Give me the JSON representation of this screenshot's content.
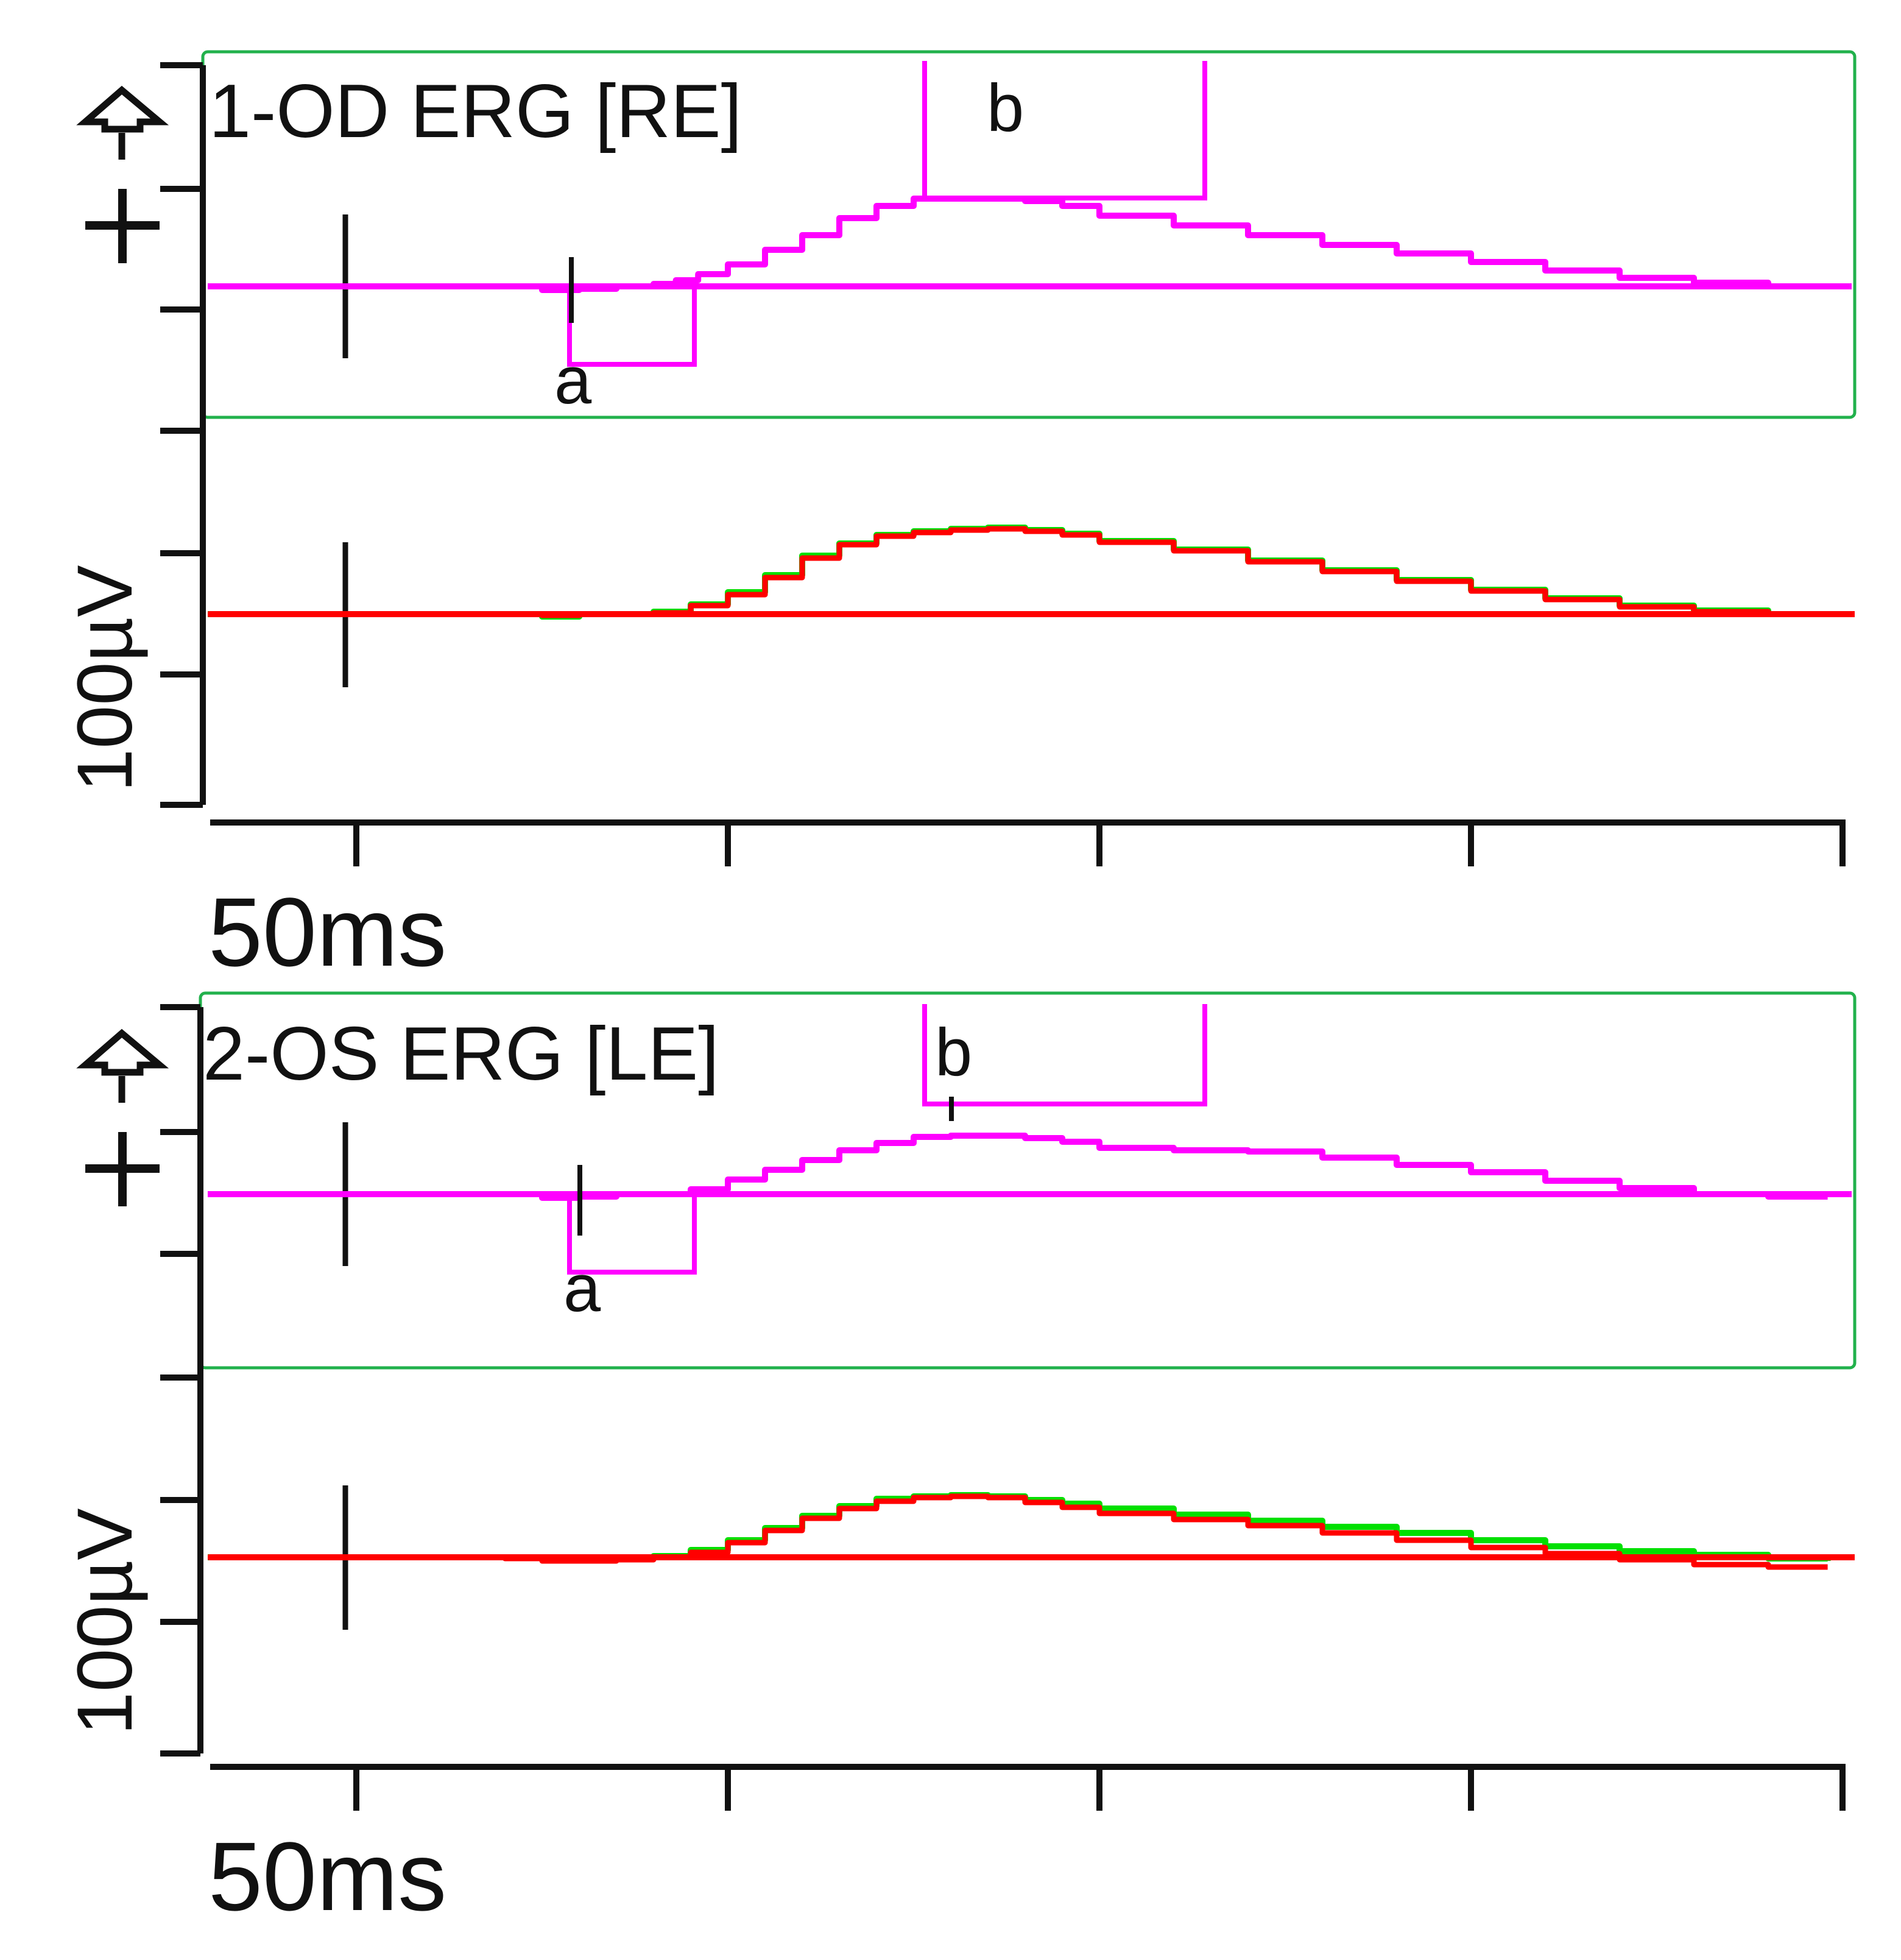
{
  "chart_data": [
    {
      "type": "line",
      "title": "1-OD ERG [RE]",
      "xlabel": "50ms",
      "ylabel": "100µV",
      "x_unit": "ms",
      "y_unit": "µV",
      "xlim": [
        -20,
        200
      ],
      "x_ticks": [
        0,
        50,
        100,
        150,
        200
      ],
      "grid": false,
      "colors": {
        "selected": "#ff00ff",
        "green": "#00e000",
        "red": "#ff0000",
        "panel_frame": "#22b14c",
        "axis": "#111111"
      },
      "markers": [
        {
          "label": "a",
          "time_ms": 31,
          "box_t": [
            30,
            47
          ],
          "box_uv": [
            -32,
            0
          ]
        },
        {
          "label": "b",
          "time_ms": 88,
          "box_t": [
            77,
            115
          ],
          "box_uv": [
            37,
            95
          ]
        }
      ],
      "series": [
        {
          "name": "selected",
          "color": "#ff00ff",
          "x": [
            -20,
            0,
            10,
            20,
            25,
            30,
            35,
            38,
            40,
            43,
            46,
            50,
            55,
            60,
            65,
            70,
            75,
            80,
            85,
            90,
            95,
            100,
            110,
            120,
            130,
            140,
            150,
            160,
            170,
            180,
            190,
            198
          ],
          "y": [
            0,
            0,
            0,
            0,
            -3,
            -2,
            0,
            0,
            2,
            5,
            10,
            18,
            30,
            42,
            56,
            66,
            72,
            72,
            72,
            70,
            66,
            58,
            50,
            42,
            34,
            27,
            20,
            13,
            7,
            3,
            0,
            0
          ]
        },
        {
          "name": "green",
          "color": "#00e000",
          "x": [
            -20,
            0,
            20,
            25,
            30,
            35,
            40,
            45,
            50,
            55,
            60,
            65,
            70,
            75,
            80,
            85,
            90,
            95,
            100,
            110,
            120,
            130,
            140,
            150,
            160,
            170,
            180,
            190,
            198
          ],
          "y": [
            0,
            0,
            0,
            -2,
            0,
            0,
            2,
            8,
            18,
            32,
            48,
            58,
            65,
            68,
            70,
            71,
            69,
            66,
            60,
            53,
            44,
            36,
            28,
            20,
            13,
            7,
            3,
            0,
            0
          ]
        },
        {
          "name": "red",
          "color": "#ff0000",
          "x": [
            -20,
            0,
            20,
            25,
            30,
            35,
            40,
            45,
            50,
            55,
            60,
            65,
            70,
            75,
            80,
            85,
            90,
            95,
            100,
            110,
            120,
            130,
            140,
            150,
            160,
            170,
            180,
            190,
            198
          ],
          "y": [
            0,
            0,
            0,
            -1,
            0,
            0,
            1,
            7,
            16,
            30,
            46,
            57,
            64,
            67,
            69,
            70,
            68,
            65,
            59,
            52,
            43,
            35,
            27,
            19,
            12,
            6,
            2,
            0,
            0
          ]
        }
      ]
    },
    {
      "type": "line",
      "title": "2-OS ERG [LE]",
      "xlabel": "50ms",
      "ylabel": "100µV",
      "x_unit": "ms",
      "y_unit": "µV",
      "xlim": [
        -20,
        200
      ],
      "x_ticks": [
        0,
        50,
        100,
        150,
        200
      ],
      "grid": false,
      "colors": {
        "selected": "#ff00ff",
        "green": "#00e000",
        "red": "#ff0000",
        "panel_frame": "#22b14c",
        "axis": "#111111"
      },
      "markers": [
        {
          "label": "a",
          "time_ms": 32,
          "box_t": [
            30,
            47
          ],
          "box_uv": [
            -32,
            0
          ]
        },
        {
          "label": "b",
          "time_ms": 81,
          "box_t": [
            77,
            115
          ],
          "box_uv": [
            36,
            80
          ]
        }
      ],
      "series": [
        {
          "name": "selected",
          "color": "#ff00ff",
          "x": [
            -20,
            0,
            20,
            25,
            30,
            35,
            40,
            45,
            50,
            55,
            60,
            65,
            70,
            75,
            80,
            85,
            90,
            95,
            100,
            110,
            120,
            130,
            140,
            150,
            160,
            170,
            180,
            190,
            198
          ],
          "y": [
            0,
            0,
            0,
            -3,
            -2,
            0,
            0,
            4,
            12,
            20,
            28,
            36,
            42,
            47,
            48,
            48,
            46,
            43,
            38,
            36,
            35,
            30,
            24,
            18,
            11,
            5,
            0,
            -2,
            -2
          ]
        },
        {
          "name": "green",
          "color": "#00e000",
          "x": [
            -20,
            0,
            20,
            25,
            30,
            35,
            40,
            45,
            50,
            55,
            60,
            65,
            70,
            75,
            80,
            85,
            90,
            95,
            100,
            110,
            120,
            130,
            140,
            150,
            160,
            170,
            180,
            190,
            198
          ],
          "y": [
            0,
            0,
            0,
            -2,
            -2,
            0,
            1,
            6,
            14,
            24,
            34,
            42,
            48,
            50,
            51,
            50,
            47,
            44,
            40,
            35,
            30,
            25,
            20,
            14,
            9,
            5,
            2,
            -1,
            -3
          ]
        },
        {
          "name": "red",
          "color": "#ff0000",
          "x": [
            -20,
            0,
            20,
            25,
            30,
            35,
            40,
            45,
            50,
            55,
            60,
            65,
            70,
            75,
            80,
            85,
            90,
            95,
            100,
            110,
            120,
            130,
            140,
            150,
            160,
            170,
            180,
            190,
            198
          ],
          "y": [
            0,
            0,
            -1,
            -3,
            -3,
            -2,
            0,
            4,
            12,
            22,
            32,
            40,
            46,
            49,
            50,
            49,
            45,
            41,
            36,
            31,
            26,
            20,
            14,
            8,
            3,
            -2,
            -6,
            -8,
            -8
          ]
        }
      ]
    }
  ]
}
